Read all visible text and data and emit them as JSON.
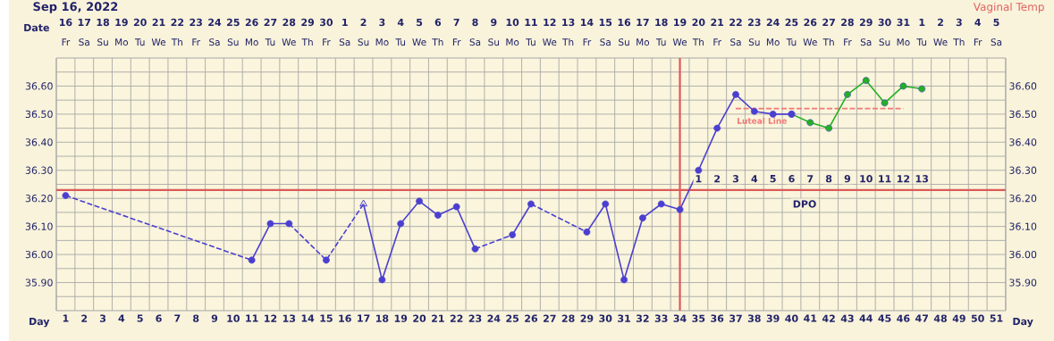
{
  "chart_data": {
    "type": "line",
    "title": "Sep 16, 2022",
    "subtitle": "Vaginal Temp",
    "xlabel": "Day",
    "xlim": [
      0.5,
      51.5
    ],
    "ylim": [
      35.8,
      36.7
    ],
    "y2lim": [
      35.8,
      36.7
    ],
    "xticks": [
      1,
      2,
      3,
      4,
      5,
      6,
      7,
      8,
      9,
      10,
      11,
      12,
      13,
      14,
      15,
      16,
      17,
      18,
      19,
      20,
      21,
      22,
      23,
      24,
      25,
      26,
      27,
      28,
      29,
      30,
      31,
      32,
      33,
      34,
      35,
      36,
      37,
      38,
      39,
      40,
      41,
      42,
      43,
      44,
      45,
      46,
      47,
      48,
      49,
      50,
      51
    ],
    "annotations": [
      "Date",
      "16",
      "17",
      "18",
      "19",
      "20",
      "21",
      "22",
      "23",
      "24",
      "25",
      "26",
      "27",
      "28",
      "29",
      "30",
      "1",
      "2",
      "3",
      "4",
      "5",
      "6",
      "7",
      "8",
      "9",
      "10",
      "11",
      "12",
      "13",
      "14",
      "15",
      "16",
      "17",
      "18",
      "19",
      "20",
      "21",
      "22",
      "23",
      "24",
      "25",
      "26",
      "27",
      "28",
      "29",
      "30",
      "31",
      "1",
      "2",
      "3",
      "4",
      "5",
      "Fr",
      "Sa",
      "Su",
      "Mo",
      "Tu",
      "We",
      "Th",
      "Fr",
      "Sa",
      "Su",
      "Mo",
      "Tu",
      "We",
      "Th",
      "Fr",
      "Sa",
      "Su",
      "Mo",
      "Tu",
      "We",
      "Th",
      "Fr",
      "Sa",
      "Su",
      "Mo",
      "Tu",
      "We",
      "Th",
      "Fr",
      "Sa",
      "Su",
      "Mo",
      "Tu",
      "We",
      "Th",
      "Fr",
      "Sa",
      "Su",
      "Mo",
      "Tu",
      "We",
      "Th",
      "Fr",
      "Sa",
      "Su",
      "Mo",
      "Tu",
      "We",
      "Th",
      "Fr",
      "Sa",
      {
        "text": "1",
        "x": 35,
        "y": 36.27
      },
      {
        "text": "2",
        "x": 36,
        "y": 36.27
      },
      {
        "text": "3",
        "x": 37,
        "y": 36.27
      },
      {
        "text": "4",
        "x": 38,
        "y": 36.27
      },
      {
        "text": "5",
        "x": 39,
        "y": 36.27
      },
      {
        "text": "6",
        "x": 40,
        "y": 36.27
      },
      {
        "text": "7",
        "x": 41,
        "y": 36.27
      },
      {
        "text": "8",
        "x": 42,
        "y": 36.27
      },
      {
        "text": "9",
        "x": 43,
        "y": 36.27
      },
      {
        "text": "10",
        "x": 44,
        "y": 36.27
      },
      {
        "text": "11",
        "x": 45,
        "y": 36.27
      },
      {
        "text": "12",
        "x": 46,
        "y": 36.27
      },
      {
        "text": "13",
        "x": 47,
        "y": 36.27
      },
      {
        "text": "DPO",
        "x": 40.7,
        "y": 36.18
      }
    ],
    "yticks": [
      {
        "value": 35.85,
        "label": null
      },
      {
        "value": 35.9,
        "label": "35.90"
      },
      {
        "value": 35.95,
        "label": null
      },
      {
        "value": 36.0,
        "label": "36.00"
      },
      {
        "value": 36.05,
        "label": null
      },
      {
        "value": 36.1,
        "label": "36.10"
      },
      {
        "value": 36.15,
        "label": null
      },
      {
        "value": 36.2,
        "label": "36.20"
      },
      {
        "value": 36.25,
        "label": null
      },
      {
        "value": 36.3,
        "label": "36.30"
      },
      {
        "value": 36.35,
        "label": null
      },
      {
        "value": 36.4,
        "label": "36.40"
      },
      {
        "value": 36.45,
        "label": null
      },
      {
        "value": 36.5,
        "label": "36.50"
      },
      {
        "value": 36.55,
        "label": null
      },
      {
        "value": 36.6,
        "label": "36.60"
      },
      {
        "value": 36.65,
        "label": null
      }
    ],
    "y2ticks": [
      {
        "value": 35.9,
        "label": "35.90"
      },
      {
        "value": 36.0,
        "label": "36.00"
      },
      {
        "value": 36.1,
        "label": "36.10"
      },
      {
        "value": 36.2,
        "label": "36.20"
      },
      {
        "value": 36.3,
        "label": "36.30"
      },
      {
        "value": 36.4,
        "label": "36.40"
      },
      {
        "value": 36.5,
        "label": "36.50"
      },
      {
        "value": 36.6,
        "label": "36.60"
      }
    ],
    "grid": true,
    "marker": "circle",
    "ref_lines": [
      {
        "axis": "y",
        "value": 36.23,
        "color": "#dc5a5a"
      },
      {
        "axis": "x",
        "value": 34,
        "color": "#dc5a5a"
      }
    ],
    "series": [
      {
        "color": "#f07878",
        "line_style": "dashed",
        "marker": "none",
        "name": "Luteal Line",
        "x": [
          37,
          46
        ],
        "values": [
          36.52,
          36.52
        ]
      },
      {
        "color": "#4b3fd0",
        "line_style": "dashed",
        "marker": "none",
        "x": [
          1,
          11
        ],
        "values": [
          36.21,
          35.98
        ]
      },
      {
        "color": "#4b3fd0",
        "line_style": "dashed",
        "marker": "none",
        "x": [
          13,
          15,
          17
        ],
        "values": [
          36.11,
          35.98,
          36.18
        ]
      },
      {
        "color": "#4b3fd0",
        "line_style": "dashed",
        "marker": "none",
        "x": [
          23,
          25
        ],
        "values": [
          36.02,
          36.07
        ]
      },
      {
        "color": "#4b3fd0",
        "line_style": "dashed",
        "marker": "none",
        "x": [
          26,
          29
        ],
        "values": [
          36.18,
          36.08
        ]
      },
      {
        "color": "#22b022",
        "x": [
          40,
          41,
          42,
          43,
          44,
          45,
          46,
          47
        ],
        "values": [
          36.5,
          36.47,
          36.45,
          36.57,
          36.62,
          36.54,
          36.6,
          36.59
        ]
      },
      {
        "color": "#4b3fd0",
        "x": [
          1,
          2,
          3,
          4,
          5,
          6,
          7,
          8,
          9,
          10,
          11,
          12,
          13,
          14,
          15,
          16,
          17,
          18,
          19,
          20,
          21,
          22,
          23,
          24,
          25,
          26,
          27,
          28,
          29,
          30,
          31,
          32,
          33,
          34,
          35,
          36,
          37,
          38,
          39,
          40
        ],
        "values": [
          36.21,
          null,
          null,
          null,
          null,
          null,
          null,
          null,
          null,
          null,
          35.98,
          36.11,
          36.11,
          null,
          35.98,
          null,
          36.18,
          35.91,
          36.11,
          36.19,
          36.14,
          36.17,
          36.02,
          null,
          36.07,
          36.18,
          null,
          null,
          36.08,
          36.18,
          35.91,
          36.13,
          36.18,
          36.16,
          36.3,
          36.45,
          36.57,
          36.51,
          36.5,
          36.5
        ]
      },
      {
        "type": "scatter",
        "color": "#4b3fd0",
        "marker": "triangle",
        "x": [
          17
        ],
        "values": [
          36.18
        ]
      }
    ]
  }
}
